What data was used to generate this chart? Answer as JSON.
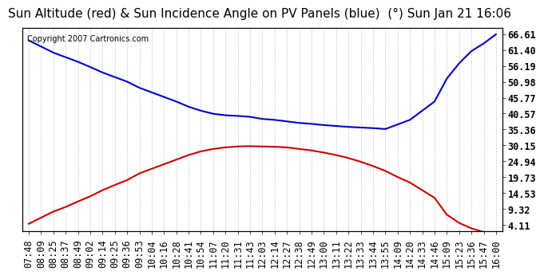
{
  "title": "Sun Altitude (red) & Sun Incidence Angle on PV Panels (blue)  (°) Sun Jan 21 16:06",
  "copyright": "Copyright 2007 Cartronics.com",
  "yticks": [
    4.11,
    9.32,
    14.53,
    19.73,
    24.94,
    30.15,
    35.36,
    40.57,
    45.77,
    50.98,
    56.19,
    61.4,
    66.61
  ],
  "ylim": [
    2.0,
    68.5
  ],
  "background_color": "#ffffff",
  "plot_bg_color": "#ffffff",
  "grid_color": "#cccccc",
  "x_labels": [
    "07:48",
    "08:09",
    "08:25",
    "08:37",
    "08:49",
    "09:02",
    "09:14",
    "09:25",
    "09:36",
    "09:53",
    "10:04",
    "10:16",
    "10:28",
    "10:41",
    "10:54",
    "11:07",
    "11:20",
    "11:31",
    "11:43",
    "12:03",
    "12:14",
    "12:27",
    "12:38",
    "12:49",
    "13:00",
    "13:11",
    "13:22",
    "13:33",
    "13:44",
    "13:55",
    "14:09",
    "14:20",
    "14:33",
    "14:46",
    "15:09",
    "15:23",
    "15:36",
    "15:47",
    "16:00"
  ],
  "red_y": [
    4.5,
    6.5,
    8.5,
    10.0,
    11.8,
    13.5,
    15.5,
    17.2,
    18.8,
    21.0,
    22.5,
    24.0,
    25.5,
    27.0,
    28.2,
    29.0,
    29.5,
    29.8,
    29.9,
    29.8,
    29.7,
    29.5,
    29.0,
    28.5,
    27.8,
    27.0,
    26.0,
    24.8,
    23.4,
    21.8,
    19.8,
    18.0,
    15.5,
    13.0,
    7.5,
    4.8,
    3.0,
    1.8,
    0.5
  ],
  "blue_y": [
    64.5,
    62.5,
    60.5,
    59.0,
    57.5,
    55.8,
    54.0,
    52.5,
    51.0,
    49.0,
    47.5,
    46.0,
    44.5,
    42.8,
    41.5,
    40.5,
    40.0,
    39.8,
    39.5,
    38.8,
    38.5,
    38.0,
    37.5,
    37.2,
    36.8,
    36.5,
    36.2,
    36.0,
    35.8,
    35.5,
    37.0,
    38.5,
    41.5,
    44.5,
    52.0,
    57.0,
    61.0,
    63.5,
    66.5
  ],
  "red_color": "#cc0000",
  "blue_color": "#0000cc",
  "title_fontsize": 11,
  "tick_fontsize": 8.5,
  "copyright_fontsize": 7
}
